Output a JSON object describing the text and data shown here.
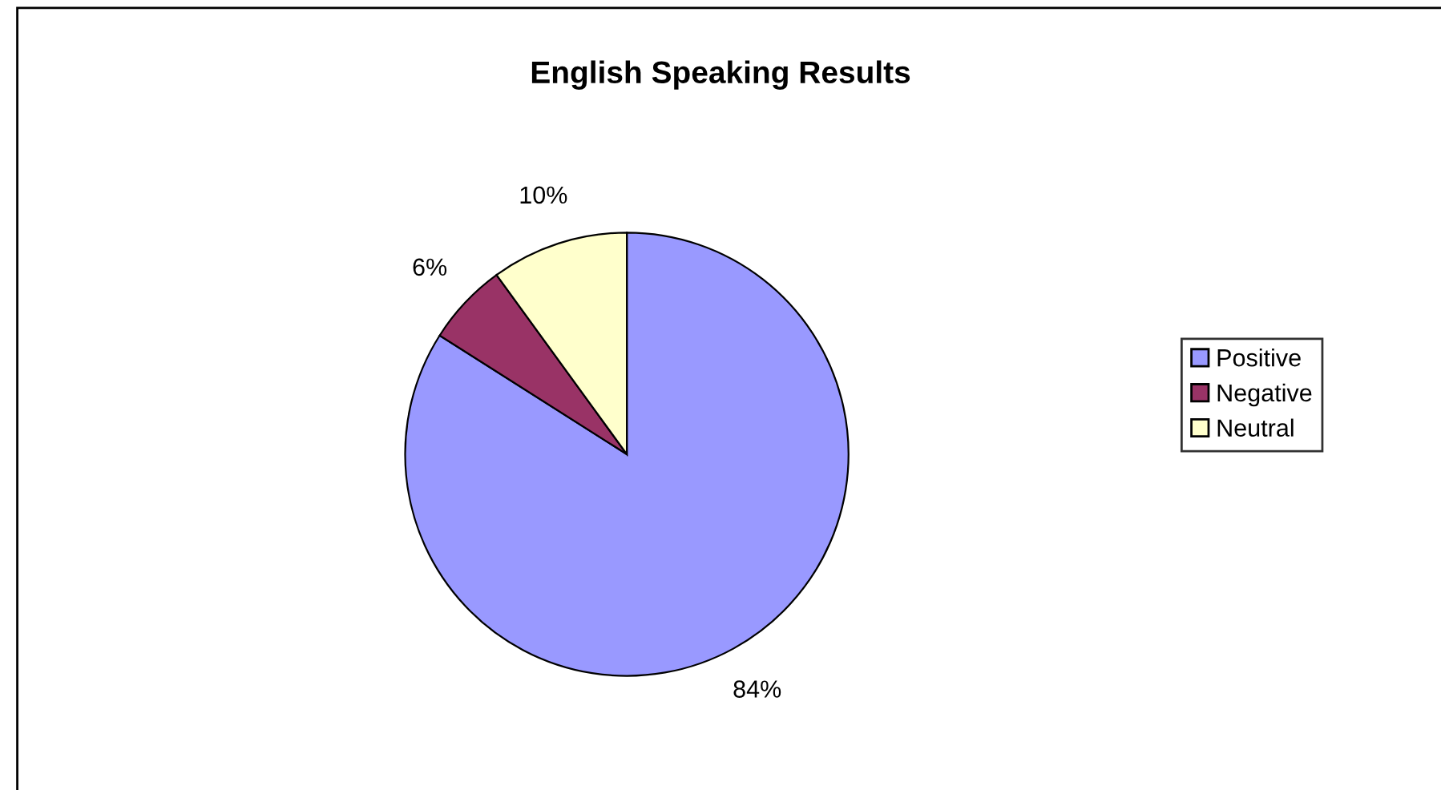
{
  "chart_data": {
    "type": "pie",
    "title": "English Speaking Results",
    "categories": [
      "Positive",
      "Negative",
      "Neutral"
    ],
    "values": [
      84,
      6,
      10
    ],
    "value_labels": [
      "84%",
      "6%",
      "10%"
    ],
    "colors": [
      "#9999ff",
      "#993366",
      "#ffffcc"
    ],
    "legend": "right"
  }
}
